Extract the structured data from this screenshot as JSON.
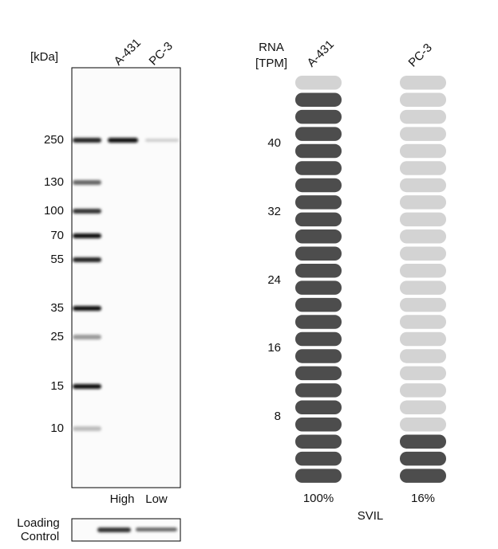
{
  "western_blot": {
    "unit": "[kDa]",
    "lanes": [
      "A-431",
      "PC-3"
    ],
    "markers": [
      "250",
      "130",
      "100",
      "70",
      "55",
      "35",
      "25",
      "15",
      "10"
    ],
    "levels": [
      "High",
      "Low"
    ],
    "loading_control": [
      "Loading",
      "Control"
    ]
  },
  "rna": {
    "header": [
      "RNA",
      "[TPM]"
    ],
    "columns": [
      {
        "name": "A-431",
        "percent": "100%"
      },
      {
        "name": "PC-3",
        "percent": "16%"
      }
    ],
    "scale": [
      "40",
      "32",
      "24",
      "16",
      "8"
    ],
    "gene": "SVIL"
  }
}
